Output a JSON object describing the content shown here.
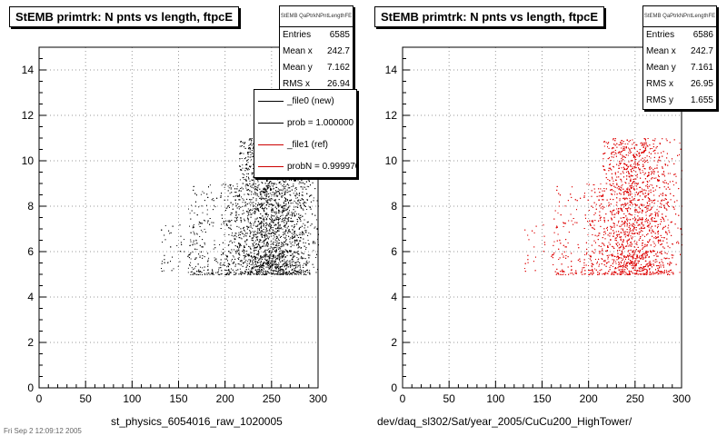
{
  "chart_data": [
    {
      "type": "scatter",
      "title": "StEMB primtrk: N pnts vs length, ftpcE",
      "xlabel": "st_physics_6054016_raw_1020005",
      "ylabel": "",
      "xlim": [
        0,
        300
      ],
      "ylim": [
        0,
        15
      ],
      "x_ticks": [
        0,
        50,
        100,
        150,
        200,
        250,
        300
      ],
      "y_ticks": [
        0,
        2,
        4,
        6,
        8,
        10,
        12,
        14
      ],
      "grid": true,
      "color": "#000000",
      "stats": {
        "header": "StEMB QaPtrkNPntLengthFE",
        "rows": [
          {
            "label": "Entries",
            "value": "6585"
          },
          {
            "label": "Mean x",
            "value": "242.7"
          },
          {
            "label": "Mean y",
            "value": "7.162"
          },
          {
            "label": "RMS x",
            "value": "26.94"
          }
        ]
      },
      "legend": [
        {
          "label": "_file0 (new)",
          "color": "#000000"
        },
        {
          "label": "prob = 1.000000",
          "color": "#000000"
        },
        {
          "label": "_file1 (ref)",
          "color": "#cc0000"
        },
        {
          "label": "probN = 0.999970",
          "color": "#cc0000"
        }
      ],
      "point_regions": [
        {
          "x": [
            200,
            300
          ],
          "y": [
            5,
            11
          ],
          "density": "high",
          "peak_x": 250
        },
        {
          "x": [
            160,
            200
          ],
          "y": [
            5,
            8
          ],
          "density": "low"
        },
        {
          "x": [
            130,
            160
          ],
          "y": [
            5,
            7
          ],
          "density": "very low"
        }
      ]
    },
    {
      "type": "scatter",
      "title": "StEMB primtrk: N pnts vs length, ftpcE",
      "xlabel": "dev/daq_sl302/Sat/year_2005/CuCu200_HighTower/",
      "ylabel": "",
      "xlim": [
        0,
        300
      ],
      "ylim": [
        0,
        15
      ],
      "x_ticks": [
        0,
        50,
        100,
        150,
        200,
        250,
        300
      ],
      "y_ticks": [
        0,
        2,
        4,
        6,
        8,
        10,
        12,
        14
      ],
      "grid": true,
      "color": "#dd0000",
      "stats": {
        "header": "StEMB QaPtrkNPntLengthFE",
        "rows": [
          {
            "label": "Entries",
            "value": "6586"
          },
          {
            "label": "Mean x",
            "value": "242.7"
          },
          {
            "label": "Mean y",
            "value": "7.161"
          },
          {
            "label": "RMS x",
            "value": "26.95"
          },
          {
            "label": "RMS y",
            "value": "1.655"
          }
        ]
      },
      "point_regions": [
        {
          "x": [
            200,
            300
          ],
          "y": [
            5,
            11
          ],
          "density": "high",
          "peak_x": 250
        },
        {
          "x": [
            160,
            200
          ],
          "y": [
            5,
            8
          ],
          "density": "low"
        },
        {
          "x": [
            130,
            160
          ],
          "y": [
            5,
            7
          ],
          "density": "very low"
        }
      ]
    }
  ],
  "footer_text": "Fri Sep 2 12:09:12 2005"
}
